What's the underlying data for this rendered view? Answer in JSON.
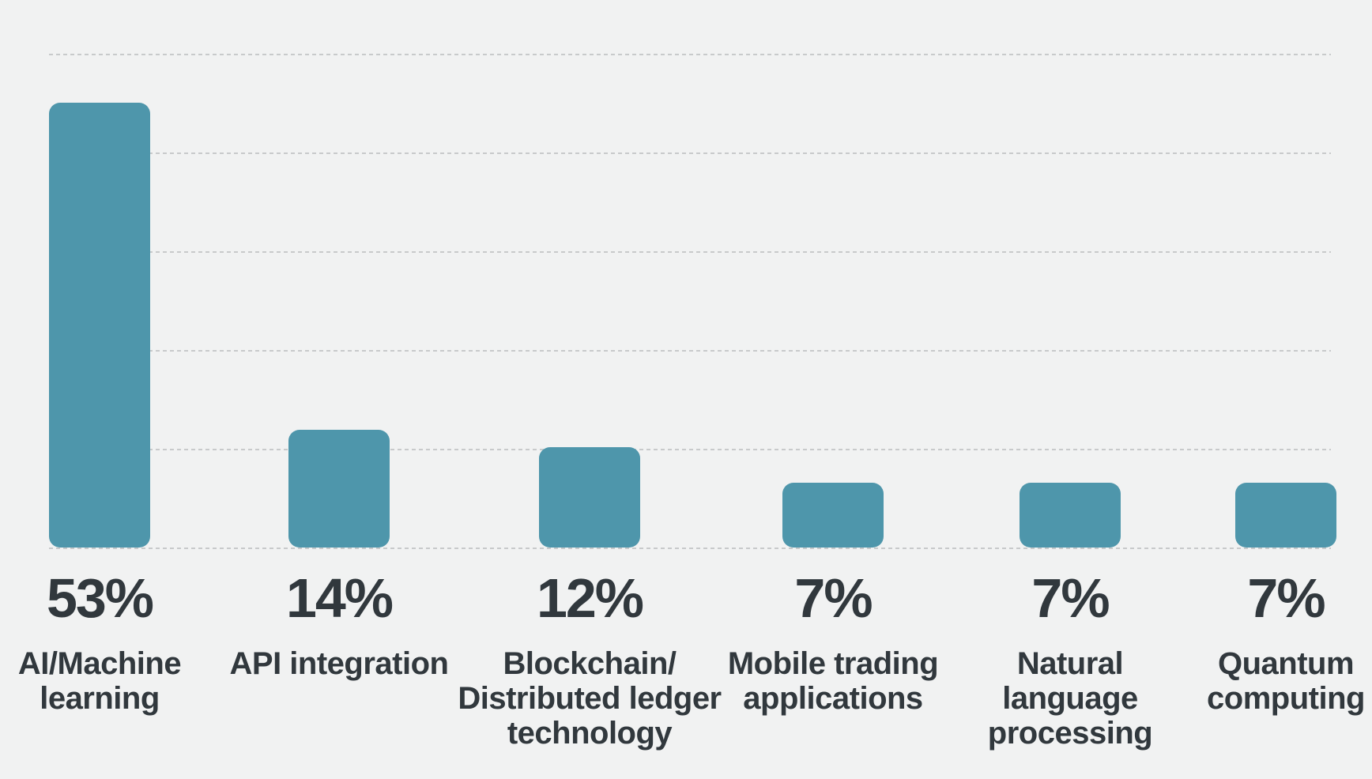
{
  "chart_data": {
    "type": "bar",
    "orientation": "vertical",
    "title": "",
    "xlabel": "",
    "ylabel": "",
    "unit": "%",
    "categories": [
      "AI/Machine learning",
      "API integration",
      "Blockchain/Distributed ledger technology",
      "Mobile trading applications",
      "Natural language processing",
      "Quantum computing"
    ],
    "display_categories": [
      "AI/Machine\nlearning",
      "API integration",
      "Blockchain/\nDistributed ledger\ntechnology",
      "Mobile trading\napplications",
      "Natural\nlanguage\nprocessing",
      "Quantum\ncomputing"
    ],
    "values": [
      53,
      14,
      12,
      7,
      7,
      7
    ],
    "value_labels": [
      "53%",
      "14%",
      "12%",
      "7%",
      "7%",
      "7%"
    ],
    "ylim": [
      0,
      60
    ],
    "grid": true,
    "gridline_style": "dashed",
    "gridline_count": 6,
    "legend": "none",
    "axis_tick_labels": "none"
  },
  "style": {
    "background_color": "#F1F2F2",
    "bar_color": "#4E96AB",
    "text_color": "#31383D",
    "gridline_color": "#C8CACB"
  }
}
